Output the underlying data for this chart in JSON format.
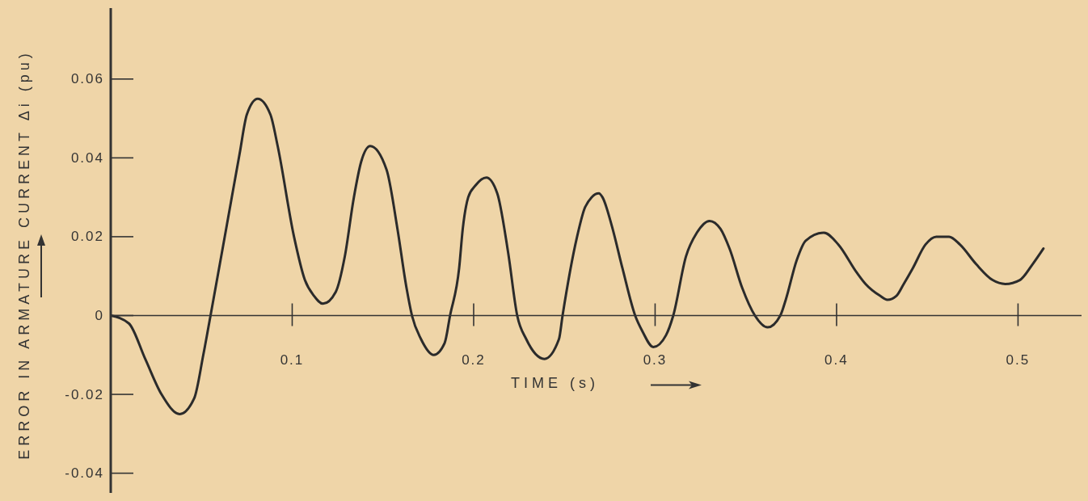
{
  "chart_data": {
    "type": "line",
    "xlabel": "TIME (s)",
    "ylabel": "ERROR IN ARMATURE CURRENT Δi (pu)",
    "x": [
      0,
      0.01,
      0.019,
      0.028,
      0.038,
      0.046,
      0.051,
      0.055,
      0.064,
      0.071,
      0.075,
      0.081,
      0.088,
      0.092,
      0.101,
      0.107,
      0.112,
      0.117,
      0.124,
      0.129,
      0.134,
      0.138,
      0.143,
      0.152,
      0.158,
      0.163,
      0.166,
      0.171,
      0.178,
      0.184,
      0.187,
      0.192,
      0.194,
      0.197,
      0.201,
      0.207,
      0.213,
      0.219,
      0.224,
      0.229,
      0.239,
      0.247,
      0.249,
      0.257,
      0.261,
      0.265,
      0.269,
      0.271,
      0.276,
      0.282,
      0.289,
      0.293,
      0.299,
      0.306,
      0.31,
      0.317,
      0.323,
      0.33,
      0.336,
      0.341,
      0.348,
      0.355,
      0.362,
      0.369,
      0.372,
      0.378,
      0.383,
      0.393,
      0.401,
      0.411,
      0.416,
      0.424,
      0.428,
      0.433,
      0.437,
      0.442,
      0.449,
      0.455,
      0.462,
      0.468,
      0.477,
      0.486,
      0.493,
      0.501,
      0.508,
      0.514
    ],
    "series": [
      {
        "color": "#2b2b2b",
        "values": [
          0,
          -0.002,
          -0.011,
          -0.02,
          -0.025,
          -0.021,
          -0.01,
          0,
          0.023,
          0.041,
          0.051,
          0.055,
          0.051,
          0.043,
          0.02,
          0.009,
          0.005,
          0.003,
          0.006,
          0.015,
          0.03,
          0.039,
          0.043,
          0.037,
          0.022,
          0.007,
          0,
          -0.006,
          -0.01,
          -0.007,
          0,
          0.012,
          0.022,
          0.03,
          0.033,
          0.035,
          0.031,
          0.016,
          0,
          -0.006,
          -0.011,
          -0.006,
          0,
          0.02,
          0.027,
          0.03,
          0.031,
          0.03,
          0.023,
          0.012,
          0,
          -0.004,
          -0.008,
          -0.005,
          0,
          0.015,
          0.021,
          0.024,
          0.022,
          0.017,
          0.007,
          0,
          -0.003,
          0,
          0.004,
          0.014,
          0.019,
          0.021,
          0.018,
          0.011,
          0.008,
          0.005,
          0.004,
          0.005,
          0.008,
          0.012,
          0.018,
          0.02,
          0.02,
          0.018,
          0.013,
          0.009,
          0.008,
          0.009,
          0.013,
          0.017
        ]
      }
    ],
    "xlim": [
      0,
      0.535
    ],
    "ylim": [
      -0.045,
      0.078
    ],
    "xticks": [
      0.1,
      0.2,
      0.3,
      0.4,
      0.5
    ],
    "yticks": [
      -0.04,
      -0.02,
      0,
      0.02,
      0.04,
      0.06
    ]
  }
}
